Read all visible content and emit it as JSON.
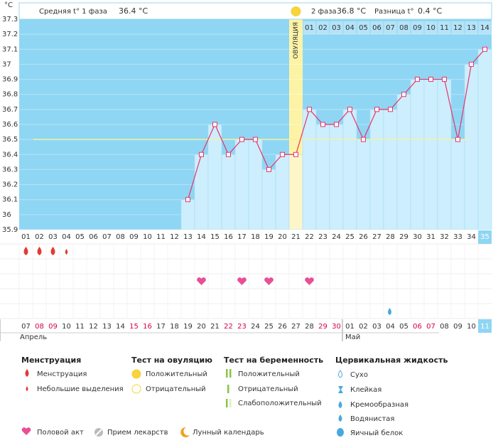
{
  "header": {
    "unit": "°C",
    "phase1": "Средняя t° 1 фаза",
    "phase1_value": "36.4 °C",
    "phase2": "2 фаза",
    "phase2_value": "36.8 °C",
    "diff": "Разница t°",
    "diff_value": "0.4 °C"
  },
  "chart_data": {
    "type": "line",
    "categories": [
      "01",
      "02",
      "03",
      "04",
      "05",
      "06",
      "07",
      "08",
      "09",
      "10",
      "11",
      "12",
      "13",
      "14",
      "15",
      "16",
      "17",
      "18",
      "19",
      "20",
      "21",
      "22",
      "23",
      "24",
      "25",
      "26",
      "27",
      "28",
      "29",
      "30",
      "31",
      "32",
      "33",
      "34",
      "35"
    ],
    "values": [
      null,
      null,
      null,
      null,
      null,
      null,
      null,
      null,
      null,
      null,
      null,
      null,
      36.1,
      36.4,
      36.6,
      36.4,
      36.5,
      36.5,
      36.3,
      36.4,
      36.4,
      36.7,
      36.6,
      36.6,
      36.7,
      36.5,
      36.7,
      36.7,
      36.8,
      36.9,
      36.9,
      36.9,
      36.5,
      37.0,
      37.1
    ],
    "color": "#e8336a",
    "ylim": [
      35.9,
      37.3
    ],
    "yticks": [
      35.9,
      36,
      36.1,
      36.2,
      36.3,
      36.4,
      36.5,
      36.6,
      36.7,
      36.8,
      36.9,
      37,
      37.1,
      37.2,
      37.3
    ],
    "grid": true,
    "coverline": 36.5,
    "ovulation_day": "21",
    "ovulation_label": "ОВУЛЯЦИЯ",
    "phase2_days": [
      "01",
      "02",
      "03",
      "04",
      "05",
      "06",
      "07",
      "08",
      "09",
      "10",
      "11",
      "12",
      "13",
      "14"
    ],
    "today": "35",
    "dates": [
      "07",
      "08",
      "09",
      "10",
      "11",
      "12",
      "13",
      "14",
      "15",
      "16",
      "17",
      "18",
      "19",
      "20",
      "21",
      "22",
      "23",
      "24",
      "25",
      "26",
      "27",
      "28",
      "29",
      "30",
      "01",
      "02",
      "03",
      "04",
      "05",
      "06",
      "07",
      "08",
      "09",
      "10",
      "11"
    ],
    "weekend": [
      false,
      true,
      true,
      false,
      false,
      false,
      false,
      false,
      true,
      true,
      false,
      false,
      false,
      false,
      false,
      true,
      true,
      false,
      false,
      false,
      false,
      false,
      true,
      true,
      false,
      false,
      false,
      false,
      false,
      true,
      true,
      false,
      false,
      false,
      false
    ],
    "months": [
      "Апрель",
      "Май"
    ],
    "menstruation_days": [
      "01",
      "02",
      "03"
    ],
    "spotting_days": [
      "04"
    ],
    "intercourse_days": [
      "14",
      "17",
      "19",
      "22"
    ],
    "watery_fluid_days": [
      "28"
    ]
  },
  "legend": {
    "menstruation": {
      "title": "Менструация",
      "items": [
        "Менструация",
        "Небольшие выделения"
      ]
    },
    "ovulation_test": {
      "title": "Тест на овуляцию",
      "items": [
        "Положительный",
        "Отрицательный"
      ]
    },
    "pregnancy_test": {
      "title": "Тест на беременность",
      "items": [
        "Положительный",
        "Отрицательный",
        "Слабоположительный"
      ]
    },
    "cervical_fluid": {
      "title": "Цервикальная жидкость",
      "items": [
        "Сухо",
        "Клейкая",
        "Кремообразная",
        "Водянистая",
        "Яичный белок"
      ]
    },
    "footer": [
      "Половой акт",
      "Прием лекарств",
      "Лунный календарь"
    ]
  }
}
